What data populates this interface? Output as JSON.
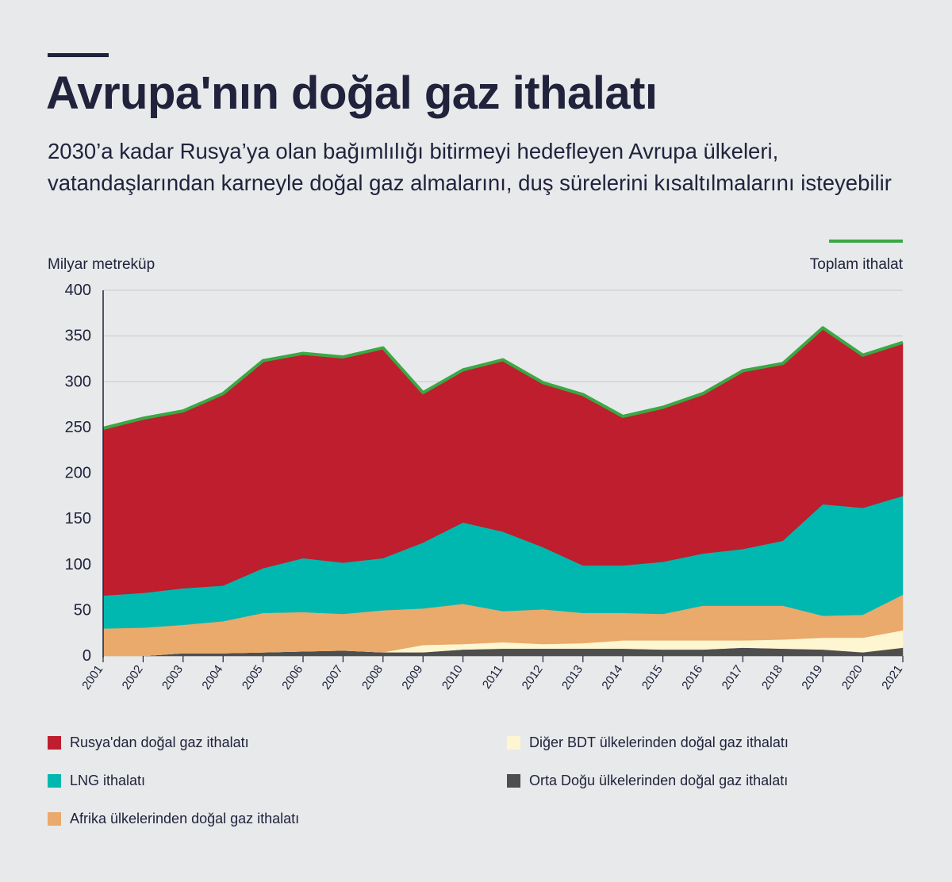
{
  "header": {
    "title": "Avrupa'nın doğal gaz ithalatı",
    "subtitle": "2030’a kadar Rusya’ya olan bağımlılığı bitirmeyi hedefleyen Avrupa ülkeleri, vatandaşlarından karneyle doğal gaz almalarını, duş sürelerini kısaltılmalarını isteyebilir"
  },
  "colors": {
    "russia": "#be1e2d",
    "lng": "#00b8b0",
    "africa": "#e9aa6c",
    "other_cis": "#fdf6d1",
    "middle_east": "#4e4e4e",
    "total_line": "#3aa843",
    "title": "#20233b",
    "background": "#e8e9eb"
  },
  "chart_data": {
    "type": "area",
    "stacked": true,
    "ylabel": "Milyar metreküp",
    "ylim": [
      0,
      400
    ],
    "yticks": [
      0,
      50,
      100,
      150,
      200,
      250,
      300,
      350,
      400
    ],
    "grid": true,
    "x": [
      "2001",
      "2002",
      "2003",
      "2004",
      "2005",
      "2006",
      "2007",
      "2008",
      "2009",
      "2010",
      "2011",
      "2012",
      "2013",
      "2014",
      "2015",
      "2016",
      "2017",
      "2018",
      "2019",
      "2020",
      "2021"
    ],
    "series": [
      {
        "name": "Orta Doğu ülkelerinden doğal gaz ithalatı",
        "key": "middle_east",
        "values": [
          0,
          0,
          3,
          3,
          4,
          5,
          6,
          4,
          4,
          7,
          8,
          8,
          8,
          8,
          7,
          7,
          9,
          8,
          7,
          4,
          9
        ]
      },
      {
        "name": "Diğer BDT ülkelerinden doğal gaz ithalatı",
        "key": "other_cis",
        "values": [
          0,
          0,
          0,
          0,
          0,
          0,
          0,
          0,
          8,
          6,
          7,
          5,
          6,
          9,
          10,
          10,
          8,
          10,
          13,
          16,
          19
        ]
      },
      {
        "name": "Afrika ülkelerinden doğal gaz ithalatı",
        "key": "africa",
        "values": [
          30,
          31,
          31,
          35,
          43,
          43,
          40,
          46,
          40,
          44,
          34,
          38,
          33,
          30,
          29,
          38,
          38,
          37,
          24,
          25,
          39
        ]
      },
      {
        "name": "LNG ithalatı",
        "key": "lng",
        "values": [
          36,
          38,
          40,
          39,
          49,
          59,
          56,
          57,
          72,
          89,
          87,
          68,
          52,
          52,
          57,
          57,
          62,
          71,
          122,
          117,
          108
        ]
      },
      {
        "name": "Rusya'dan doğal gaz ithalatı",
        "key": "russia",
        "values": [
          183,
          191,
          194,
          210,
          227,
          224,
          225,
          230,
          164,
          167,
          188,
          180,
          187,
          163,
          169,
          175,
          195,
          194,
          193,
          167,
          168
        ]
      }
    ],
    "total": {
      "name": "Toplam ithalat",
      "values": [
        249,
        260,
        268,
        287,
        323,
        331,
        327,
        337,
        288,
        313,
        324,
        299,
        286,
        262,
        272,
        287,
        312,
        320,
        359,
        329,
        343
      ]
    }
  },
  "legend": {
    "total_label": "Toplam ithalat",
    "items": [
      {
        "label": "Rusya'dan doğal gaz ithalatı",
        "key": "russia"
      },
      {
        "label": "Diğer BDT ülkelerinden doğal gaz ithalatı",
        "key": "other_cis"
      },
      {
        "label": "LNG ithalatı",
        "key": "lng"
      },
      {
        "label": "Orta Doğu ülkelerinden doğal gaz ithalatı",
        "key": "middle_east"
      },
      {
        "label": "Afrika ülkelerinden doğal gaz ithalatı",
        "key": "africa"
      }
    ]
  }
}
